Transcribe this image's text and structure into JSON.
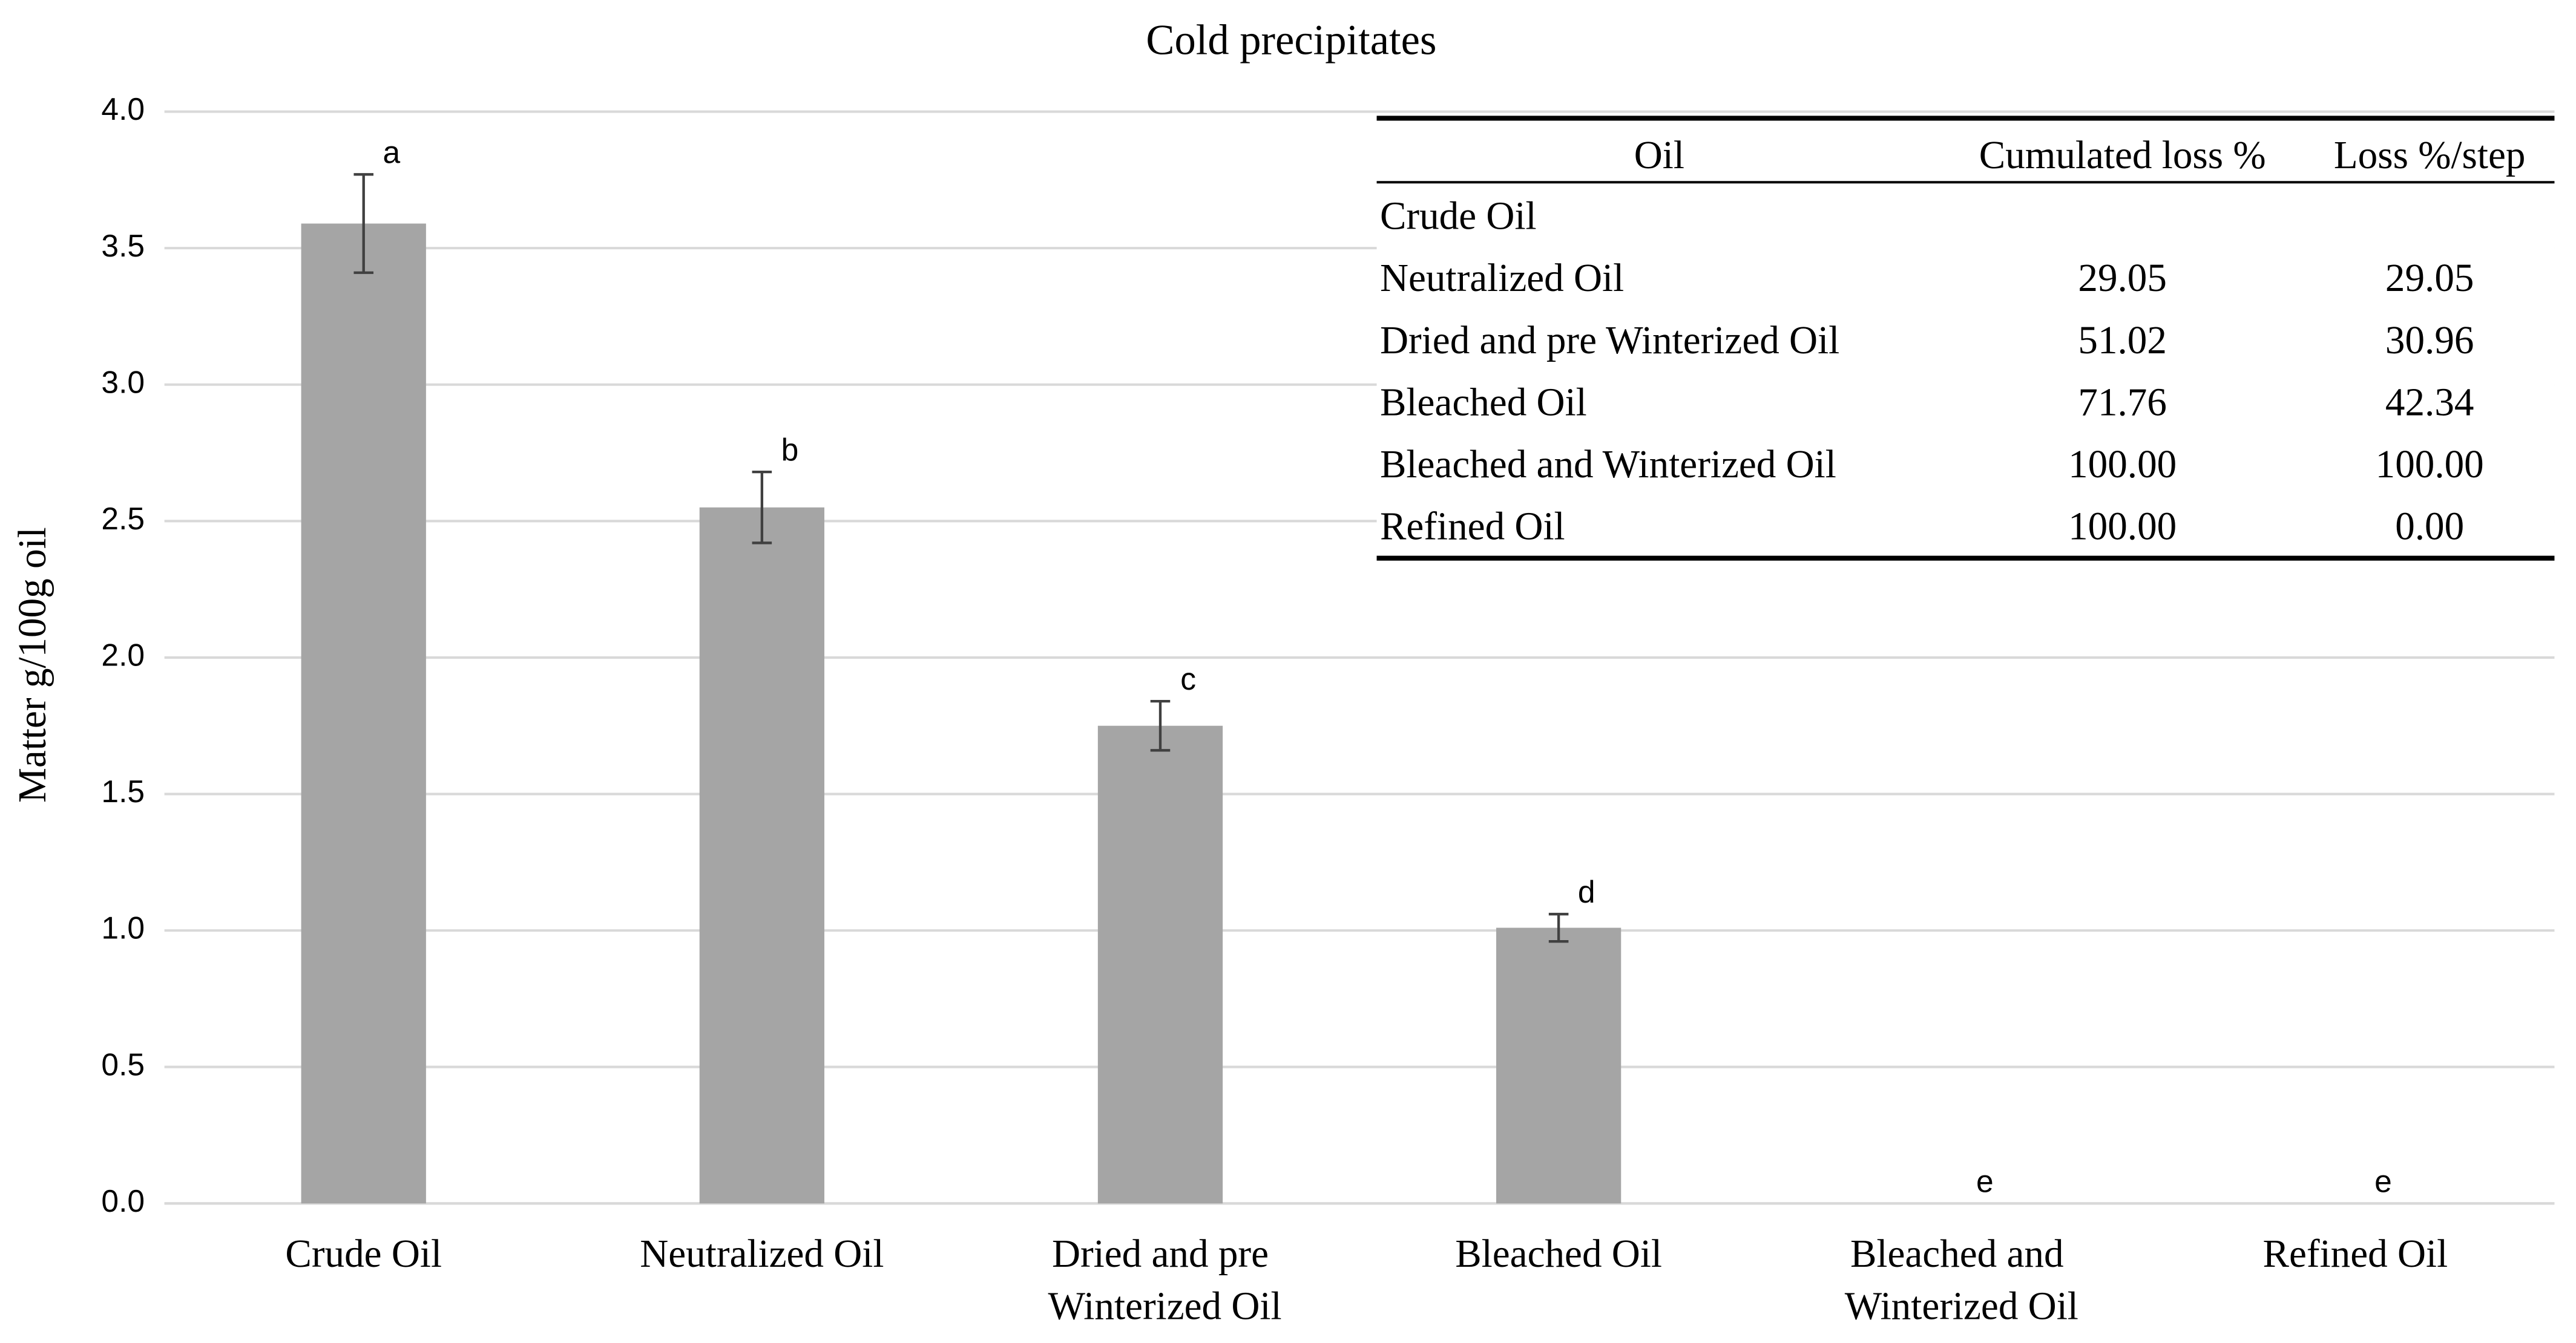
{
  "chart_data": {
    "type": "bar",
    "title": "Cold precipitates",
    "y_label": "Matter g/100g oil",
    "categories": [
      "Crude Oil",
      "Neutralized Oil",
      "Dried and pre Winterized Oil",
      "Bleached Oil",
      "Bleached and Winterized Oil",
      "Refined Oil"
    ],
    "values": [
      3.59,
      2.55,
      1.75,
      1.01,
      0,
      0
    ],
    "errors": [
      0.18,
      0.13,
      0.09,
      0.05,
      null,
      null
    ],
    "letters": [
      "a",
      "b",
      "c",
      "d",
      "e",
      "e"
    ],
    "color": "#a5a5a5",
    "grid": true,
    "ylim": [
      0,
      4
    ],
    "yticks": [
      {
        "value": 0,
        "label": "0.0"
      },
      {
        "value": 0.5,
        "label": "0.5"
      },
      {
        "value": 1,
        "label": "1.0"
      },
      {
        "value": 1.5,
        "label": "1.5"
      },
      {
        "value": 2,
        "label": "2.0"
      },
      {
        "value": 2.5,
        "label": "2.5"
      },
      {
        "value": 3,
        "label": "3.0"
      },
      {
        "value": 3.5,
        "label": "3.5"
      },
      {
        "value": 4,
        "label": "4.0"
      }
    ],
    "table": {
      "header": [
        "Oil",
        "Cumulated loss %",
        "Loss %/step"
      ],
      "rows": [
        [
          "Crude Oil"
        ],
        [
          "Neutralized Oil",
          "29.05",
          "29.05"
        ],
        [
          "Dried and pre Winterized Oil",
          "51.02",
          "30.96"
        ],
        [
          "Bleached Oil",
          "71.76",
          "42.34"
        ],
        [
          "Bleached and Winterized Oil",
          "100.00",
          "100.00"
        ],
        [
          "Refined Oil",
          "100.00",
          "0.00"
        ]
      ]
    }
  }
}
